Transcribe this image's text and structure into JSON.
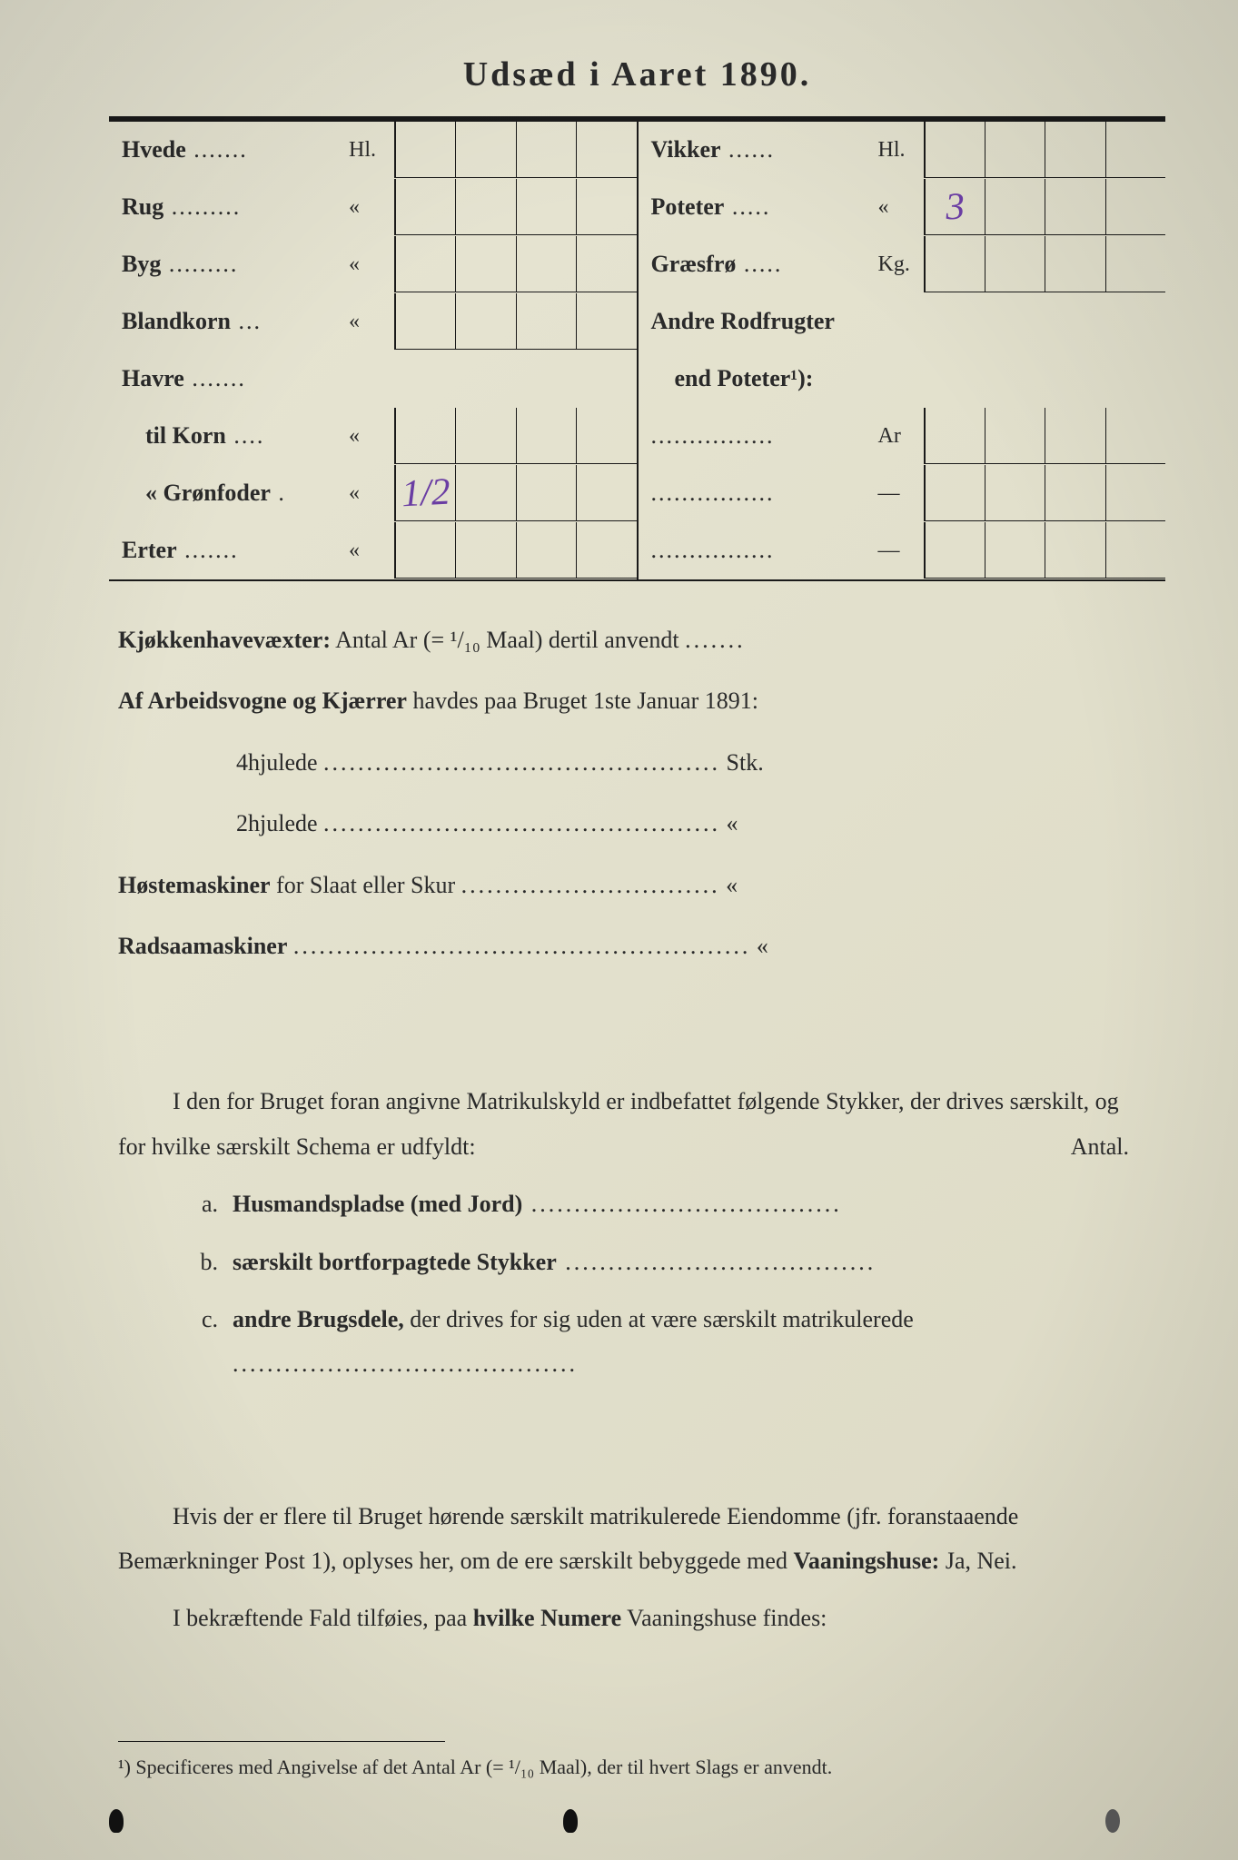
{
  "colors": {
    "paper_bg": "#e2e0cc",
    "ink": "#2a2a2a",
    "handwriting": "#6a3da3",
    "rule": "#1a1a1a"
  },
  "title": "Udsæd i Aaret 1890.",
  "seed_table": {
    "left": [
      {
        "label": "Hvede",
        "unit": "Hl.",
        "cells": [
          "",
          "",
          "",
          ""
        ]
      },
      {
        "label": "Rug",
        "unit": "«",
        "cells": [
          "",
          "",
          "",
          ""
        ]
      },
      {
        "label": "Byg",
        "unit": "«",
        "cells": [
          "",
          "",
          "",
          ""
        ]
      },
      {
        "label": "Blandkorn",
        "unit": "«",
        "cells": [
          "",
          "",
          "",
          ""
        ]
      },
      {
        "label": "Havre",
        "unit": "",
        "cells": null
      },
      {
        "label": "til Korn",
        "unit": "«",
        "indent": true,
        "cells": [
          "",
          "",
          "",
          ""
        ]
      },
      {
        "label": "« Grønfoder",
        "unit": "«",
        "indent": true,
        "cells": [
          "1/2",
          "",
          "",
          ""
        ],
        "hand": true
      },
      {
        "label": "Erter",
        "unit": "«",
        "cells": [
          "",
          "",
          "",
          ""
        ]
      }
    ],
    "right": [
      {
        "label": "Vikker",
        "unit": "Hl.",
        "cells": [
          "",
          "",
          "",
          ""
        ]
      },
      {
        "label": "Poteter",
        "unit": "«",
        "cells": [
          "3",
          "",
          "",
          ""
        ],
        "hand": true
      },
      {
        "label": "Græsfrø",
        "unit": "Kg.",
        "cells": [
          "",
          "",
          "",
          ""
        ]
      },
      {
        "label": "Andre Rodfrugter",
        "unit": "",
        "cells": null
      },
      {
        "label": "end Poteter¹):",
        "unit": "",
        "indent": true,
        "cells": null
      },
      {
        "label": "",
        "unit": "Ar",
        "blank_dots": true,
        "cells": [
          "",
          "",
          "",
          ""
        ]
      },
      {
        "label": "",
        "unit": "—",
        "blank_dots": true,
        "cells": [
          "",
          "",
          "",
          ""
        ]
      },
      {
        "label": "",
        "unit": "—",
        "blank_dots": true,
        "cells": [
          "",
          "",
          "",
          ""
        ]
      }
    ]
  },
  "body": {
    "kjokken_label": "Kjøkkenhavevæxter:",
    "kjokken_text": "Antal Ar (= ¹/₁₀ Maal) dertil anvendt",
    "arbeids_label": "Af Arbeidsvogne og Kjærrer",
    "arbeids_text": "havdes paa Bruget 1ste Januar 1891:",
    "fourwheel": "4hjulede",
    "fourwheel_unit": "Stk.",
    "twowheel": "2hjulede",
    "twowheel_unit": "«",
    "hoste_label": "Høstemaskiner",
    "hoste_text": "for Slaat eller Skur",
    "hoste_unit": "«",
    "rad_label": "Radsaamaskiner",
    "rad_unit": "«",
    "matrikul_para": "I den for Bruget foran angivne Matrikulskyld er indbefattet følgende Stykker, der drives særskilt, og for hvilke særskilt Schema er udfyldt:",
    "antal_label": "Antal.",
    "list": [
      {
        "marker": "a.",
        "bold": "Husmandspladse (med Jord)"
      },
      {
        "marker": "b.",
        "bold": "særskilt bortforpagtede Stykker"
      },
      {
        "marker": "c.",
        "bold": "andre Brugsdele,",
        "rest": "der drives for sig uden at være særskilt matrikulerede"
      }
    ],
    "eiendomme_para1": "Hvis der er flere til Bruget hørende særskilt matrikulerede Eiendomme (jfr. foranstaaende Bemærkninger Post 1), oplyses her, om de ere særskilt bebyggede med",
    "vaaningshuse": "Vaaningshuse:",
    "janeinei": "Ja, Nei.",
    "eiendomme_para2_a": "I bekræftende Fald tilføies, paa",
    "eiendomme_para2_bold": "hvilke Numere",
    "eiendomme_para2_b": "Vaaningshuse findes:"
  },
  "footnote": {
    "marker": "¹)",
    "text": "Specificeres med Angivelse af det Antal Ar (= ¹/₁₀ Maal), der til hvert Slags er anvendt."
  }
}
